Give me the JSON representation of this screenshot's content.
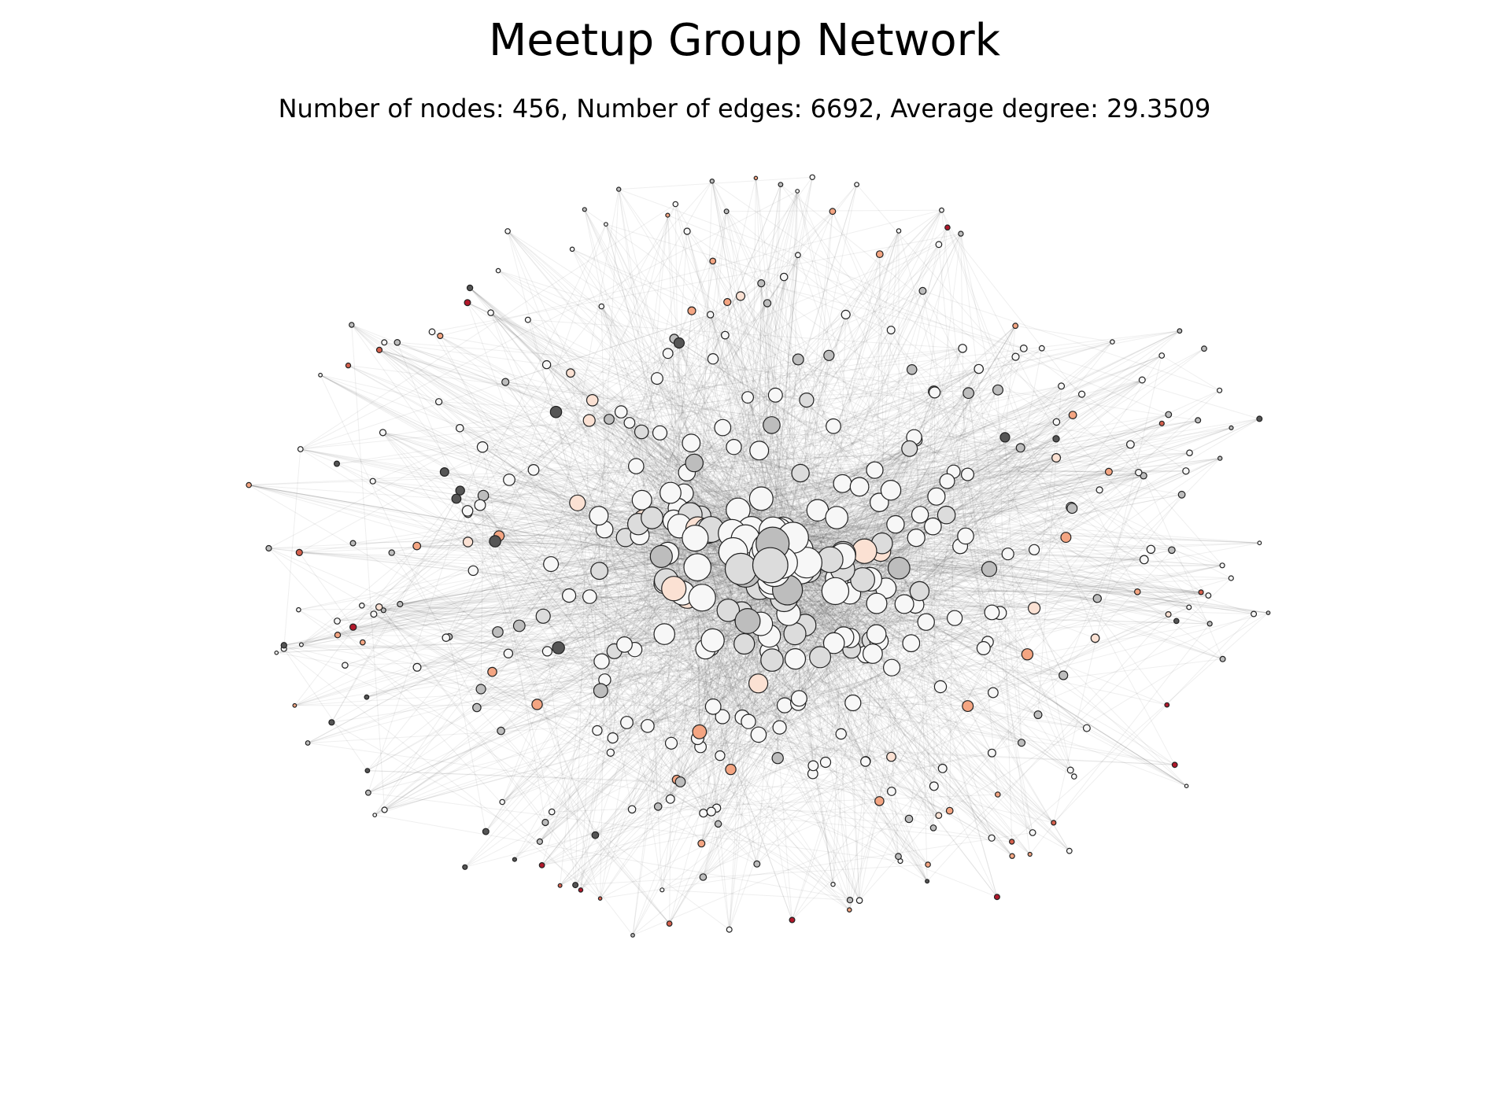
{
  "title": "Meetup Group Network",
  "subtitle": "Number of nodes: 456, Number of edges: 6692, Average degree:  29.3509",
  "network": {
    "node_count": 456,
    "edge_count": 6692,
    "average_degree": 29.3509
  },
  "colors": {
    "edge": "#444444",
    "node_outline": "#222222",
    "node_fill_light": "#f7f7f7",
    "node_fill_grey": "#bdbdbd",
    "node_fill_dark": "#555555",
    "node_fill_peach": "#fbe1d3",
    "node_fill_salmon": "#f4a582",
    "node_fill_red": "#d6604d",
    "node_fill_darkred": "#b2182b"
  }
}
